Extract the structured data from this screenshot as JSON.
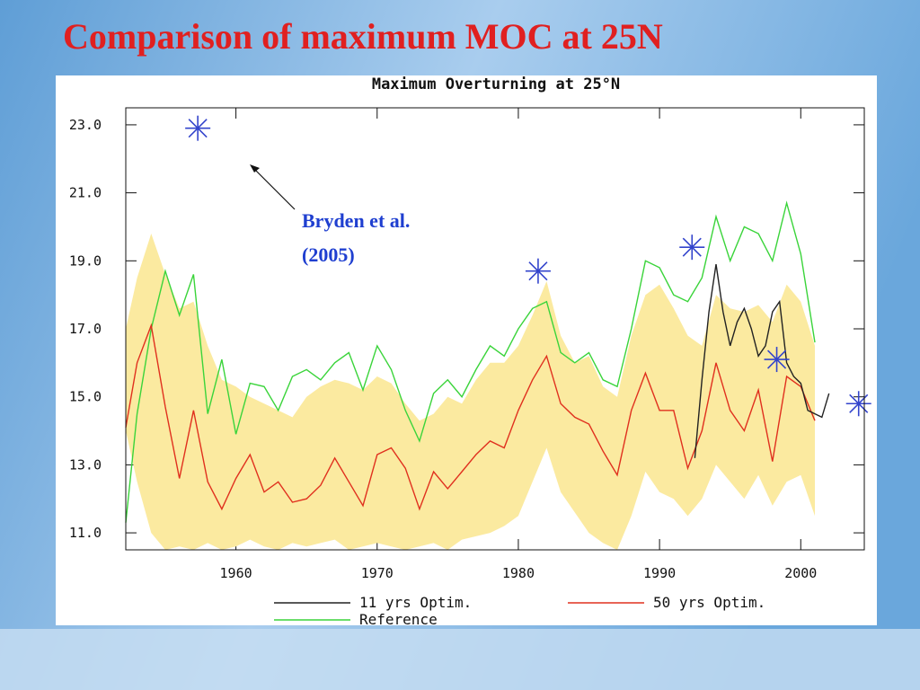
{
  "title": "Comparison of maximum MOC at 25N",
  "chart_data": {
    "type": "line",
    "title": "Maximum Overturning at 25°N",
    "xlim": [
      1952.2,
      2004.5
    ],
    "ylim": [
      10.5,
      23.5
    ],
    "xticks": [
      1960,
      1970,
      1980,
      1990,
      2000
    ],
    "yticks": [
      {
        "value": 11,
        "label": "11.0"
      },
      {
        "value": 13,
        "label": "13.0"
      },
      {
        "value": 15,
        "label": "15.0"
      },
      {
        "value": 17,
        "label": "17.0"
      },
      {
        "value": 19,
        "label": "19.0"
      },
      {
        "value": 21,
        "label": "21.0"
      },
      {
        "value": 23,
        "label": "23.0"
      }
    ],
    "band": {
      "color": "#fbeaa0",
      "x": [
        1952.2,
        1953,
        1954,
        1955,
        1956,
        1957,
        1958,
        1959,
        1960,
        1961,
        1962,
        1963,
        1964,
        1965,
        1966,
        1967,
        1968,
        1969,
        1970,
        1971,
        1972,
        1973,
        1974,
        1975,
        1976,
        1977,
        1978,
        1979,
        1980,
        1981,
        1982,
        1983,
        1984,
        1985,
        1986,
        1987,
        1988,
        1989,
        1990,
        1991,
        1992,
        1993,
        1994,
        1995,
        1996,
        1997,
        1998,
        1999,
        2000,
        2001
      ],
      "high": [
        17,
        18.5,
        19.8,
        18.6,
        17.6,
        17.8,
        16.5,
        15.5,
        15.3,
        15.0,
        14.8,
        14.6,
        14.4,
        15.0,
        15.3,
        15.5,
        15.4,
        15.2,
        15.6,
        15.4,
        14.8,
        14.3,
        14.5,
        15.0,
        14.8,
        15.5,
        16.0,
        16.0,
        16.5,
        17.4,
        18.4,
        16.8,
        16.0,
        16.2,
        15.3,
        15.0,
        16.8,
        18.0,
        18.3,
        17.6,
        16.8,
        16.5,
        18.0,
        17.6,
        17.5,
        17.7,
        17.2,
        18.3,
        17.8,
        16.5
      ],
      "low": [
        14,
        12.5,
        11.0,
        10.5,
        10.6,
        10.5,
        10.7,
        10.5,
        10.6,
        10.8,
        10.6,
        10.5,
        10.7,
        10.6,
        10.7,
        10.8,
        10.5,
        10.6,
        10.7,
        10.6,
        10.5,
        10.6,
        10.7,
        10.5,
        10.8,
        10.9,
        11.0,
        11.2,
        11.5,
        12.5,
        13.5,
        12.2,
        11.6,
        11.0,
        10.7,
        10.5,
        11.5,
        12.8,
        12.2,
        12.0,
        11.5,
        12.0,
        13.0,
        12.5,
        12.0,
        12.7,
        11.8,
        12.5,
        12.7,
        11.5
      ]
    },
    "series": [
      {
        "name": "11 yrs Optim.",
        "color": "#222222",
        "x": [
          1992.5,
          1993,
          1993.5,
          1994,
          1994.5,
          1995,
          1995.5,
          1996,
          1996.5,
          1997,
          1997.5,
          1998,
          1998.5,
          1999,
          1999.5,
          2000,
          2000.5,
          2001,
          2001.5,
          2002
        ],
        "values": [
          13.2,
          15.5,
          17.5,
          18.9,
          17.5,
          16.5,
          17.2,
          17.6,
          17.0,
          16.2,
          16.5,
          17.5,
          17.8,
          16.0,
          15.6,
          15.4,
          14.6,
          14.5,
          14.4,
          15.1
        ]
      },
      {
        "name": "50 yrs Optim.",
        "color": "#e0301e",
        "x": [
          1952.2,
          1953,
          1954,
          1955,
          1956,
          1957,
          1958,
          1959,
          1960,
          1961,
          1962,
          1963,
          1964,
          1965,
          1966,
          1967,
          1968,
          1969,
          1970,
          1971,
          1972,
          1973,
          1974,
          1975,
          1976,
          1977,
          1978,
          1979,
          1980,
          1981,
          1982,
          1983,
          1984,
          1985,
          1986,
          1987,
          1988,
          1989,
          1990,
          1991,
          1992,
          1993,
          1994,
          1995,
          1996,
          1997,
          1998,
          1999,
          2000,
          2001
        ],
        "values": [
          14.1,
          16.0,
          17.1,
          14.7,
          12.6,
          14.6,
          12.5,
          11.7,
          12.6,
          13.3,
          12.2,
          12.5,
          11.9,
          12.0,
          12.4,
          13.2,
          12.5,
          11.8,
          13.3,
          13.5,
          12.9,
          11.7,
          12.8,
          12.3,
          12.8,
          13.3,
          13.7,
          13.5,
          14.6,
          15.5,
          16.2,
          14.8,
          14.4,
          14.2,
          13.4,
          12.7,
          14.6,
          15.7,
          14.6,
          14.6,
          12.9,
          14.0,
          16.0,
          14.6,
          14.0,
          15.2,
          13.1,
          15.6,
          15.3,
          14.3
        ]
      },
      {
        "name": "Reference",
        "color": "#3ad43a",
        "x": [
          1952.2,
          1953,
          1954,
          1955,
          1956,
          1957,
          1958,
          1959,
          1960,
          1961,
          1962,
          1963,
          1964,
          1965,
          1966,
          1967,
          1968,
          1969,
          1970,
          1971,
          1972,
          1973,
          1974,
          1975,
          1976,
          1977,
          1978,
          1979,
          1980,
          1981,
          1982,
          1983,
          1984,
          1985,
          1986,
          1987,
          1988,
          1989,
          1990,
          1991,
          1992,
          1993,
          1994,
          1995,
          1996,
          1997,
          1998,
          1999,
          2000,
          2001
        ],
        "values": [
          11.3,
          14.5,
          17.0,
          18.7,
          17.4,
          18.6,
          14.5,
          16.1,
          13.9,
          15.4,
          15.3,
          14.6,
          15.6,
          15.8,
          15.5,
          16.0,
          16.3,
          15.2,
          16.5,
          15.8,
          14.6,
          13.7,
          15.1,
          15.5,
          15.0,
          15.8,
          16.5,
          16.2,
          17.0,
          17.6,
          17.8,
          16.3,
          16.0,
          16.3,
          15.5,
          15.3,
          17.0,
          19.0,
          18.8,
          18.0,
          17.8,
          18.5,
          20.3,
          19.0,
          20.0,
          19.8,
          19.0,
          20.7,
          19.2,
          16.6
        ]
      }
    ],
    "points": {
      "color": "#3344cc",
      "x": [
        1957.3,
        1981.4,
        1992.3,
        1998.3,
        2004.1
      ],
      "values": [
        22.9,
        18.7,
        19.4,
        16.1,
        14.8
      ]
    },
    "annotation": [
      "Bryden et al.",
      "(2005)"
    ]
  }
}
